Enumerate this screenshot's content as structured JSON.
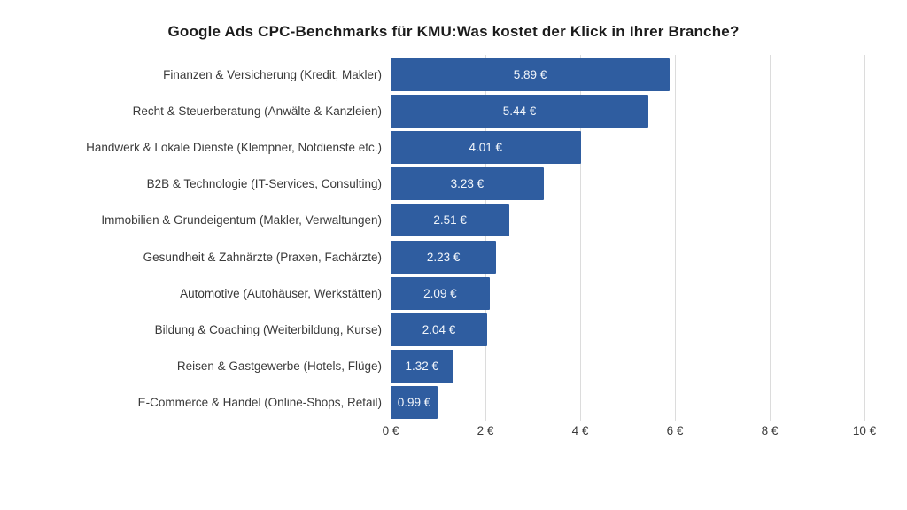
{
  "page": {
    "background": "#ffffff"
  },
  "chart_data": {
    "type": "bar",
    "orientation": "horizontal",
    "title": "Google Ads CPC-Benchmarks für KMU:Was kostet der Klick in Ihrer Branche?",
    "categories": [
      "Finanzen & Versicherung (Kredit, Makler)",
      "Recht & Steuerberatung (Anwälte & Kanzleien)",
      "Handwerk & Lokale Dienste (Klempner, Notdienste etc.)",
      "B2B & Technologie (IT-Services, Consulting)",
      "Immobilien & Grundeigentum (Makler, Verwaltungen)",
      "Gesundheit & Zahnärzte (Praxen, Fachärzte)",
      "Automotive (Autohäuser, Werkstätten)",
      "Bildung & Coaching (Weiterbildung, Kurse)",
      "Reisen & Gastgewerbe (Hotels, Flüge)",
      "E-Commerce & Handel (Online-Shops, Retail)"
    ],
    "values": [
      5.89,
      5.44,
      4.01,
      3.23,
      2.51,
      2.23,
      2.09,
      2.04,
      1.32,
      0.99
    ],
    "value_labels": [
      "5.89 €",
      "5.44 €",
      "4.01 €",
      "3.23 €",
      "2.51 €",
      "2.23 €",
      "2.09 €",
      "2.04 €",
      "1.32 €",
      "0.99 €"
    ],
    "xlabel": "",
    "ylabel": "",
    "xlim": [
      0,
      10
    ],
    "x_ticks": [
      0,
      2,
      4,
      6,
      8,
      10
    ],
    "x_tick_labels": [
      "0 €",
      "2 €",
      "4 €",
      "6 €",
      "8 €",
      "10 €"
    ],
    "grid": "vertical-gridlines-at-ticks-except-zero",
    "legend": "none",
    "bar_color": "#2f5da0",
    "value_label_color": "#f2f6fb",
    "gridline_color": "#dcdcdc",
    "title_color": "#1c1c1c",
    "label_color": "#3a3a3a"
  }
}
